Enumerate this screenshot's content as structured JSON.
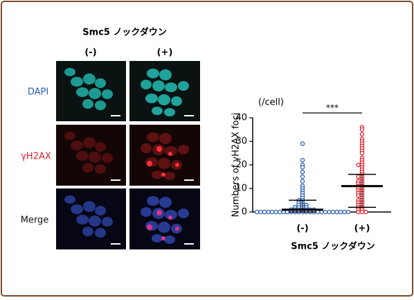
{
  "figure": {
    "title": "Smc5 ノックダウン",
    "columns": [
      "(-)",
      "(+)"
    ],
    "rows": [
      "DAPI",
      "γH2AX",
      "Merge"
    ]
  },
  "chart_data": {
    "type": "dot",
    "unit": "(/cell)",
    "y_label": "Numbers of γH2AX foci",
    "x_label": "Smc5 ノックダウン",
    "significance": "***",
    "categories": [
      "(-)",
      "(+)"
    ],
    "colors": [
      "#2b5fb4",
      "#e0242e"
    ],
    "values": [
      [
        29,
        22,
        20,
        19,
        17,
        15,
        13,
        11,
        10,
        9,
        8,
        7,
        6,
        5,
        5,
        4,
        4,
        3,
        3,
        3,
        2,
        2,
        2,
        2,
        1,
        1,
        1,
        1,
        1,
        1,
        1,
        0,
        0,
        0,
        0,
        0,
        0,
        0,
        0,
        0,
        0,
        0,
        0,
        0,
        0,
        0,
        0,
        0,
        0,
        0,
        0,
        0,
        0,
        0,
        0,
        0
      ],
      [
        36,
        35,
        33,
        31,
        30,
        29,
        28,
        27,
        26,
        25,
        23,
        22,
        21,
        20,
        20,
        19,
        18,
        17,
        16,
        15,
        15,
        14,
        13,
        13,
        12,
        12,
        11,
        11,
        10,
        10,
        9,
        9,
        8,
        8,
        7,
        7,
        6,
        5,
        5,
        4,
        4,
        3,
        3,
        2,
        2,
        1,
        1,
        0,
        0,
        0
      ]
    ],
    "center": [
      1,
      11
    ],
    "upper": [
      5,
      16
    ],
    "lower": [
      0,
      2
    ],
    "ylim": [
      0,
      40
    ],
    "yticks": [
      0,
      10,
      20,
      30,
      40
    ]
  }
}
